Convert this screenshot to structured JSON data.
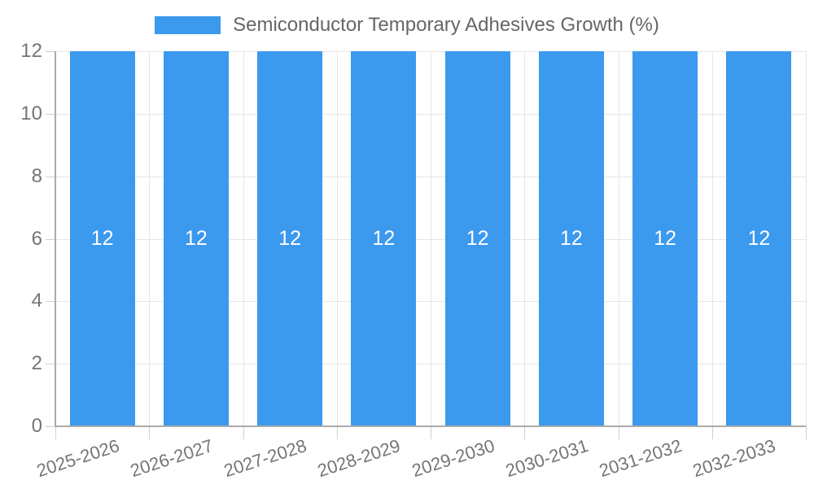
{
  "legend": {
    "position": "top",
    "items": [
      {
        "label": "Semiconductor Temporary Adhesives Growth (%)",
        "color": "#3B99EE"
      }
    ]
  },
  "chart_data": {
    "type": "bar",
    "title": "Semiconductor Temporary Adhesives Growth (%)",
    "categories": [
      "2025-2026",
      "2026-2027",
      "2027-2028",
      "2028-2029",
      "2029-2030",
      "2030-2031",
      "2031-2032",
      "2032-2033"
    ],
    "values": [
      12,
      12,
      12,
      12,
      12,
      12,
      12,
      12
    ],
    "value_labels": [
      "12",
      "12",
      "12",
      "12",
      "12",
      "12",
      "12",
      "12"
    ],
    "xlabel": "",
    "ylabel": "",
    "ylim": [
      0,
      12
    ],
    "yticks": [
      0,
      2,
      4,
      6,
      8,
      10,
      12
    ],
    "grid": true,
    "legend_position": "top",
    "bar_color": "#3B99EE",
    "value_label_color": "#FFFFFF"
  },
  "colors": {
    "bar": "#3B99EE",
    "axis_line": "#ABABAB",
    "gridline": "#E6E6E6",
    "tick_mark": "#CFCFCF",
    "tick_text": "#757575",
    "legend_text": "#666666",
    "background": "#FFFFFF",
    "bar_value_text": "#FFFFFF"
  }
}
